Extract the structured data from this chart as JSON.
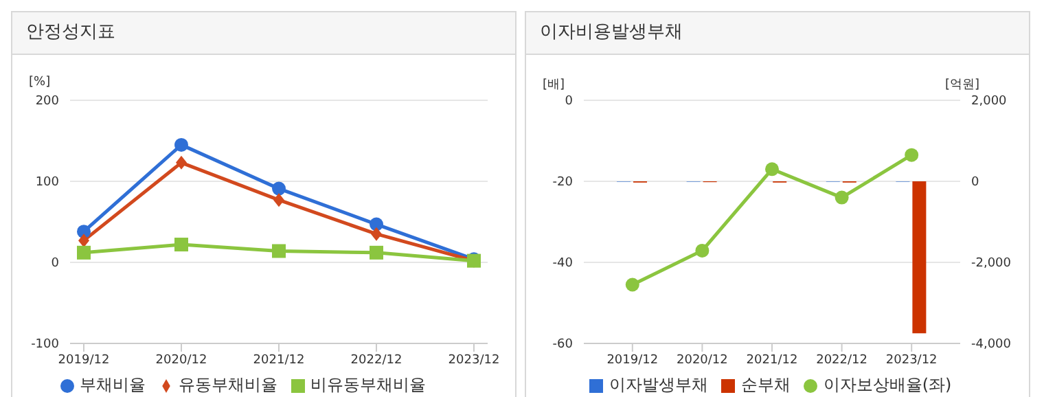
{
  "chart_data": [
    {
      "type": "line",
      "title": "안정성지표",
      "ylabel": "[%]",
      "categories": [
        "2019/12",
        "2020/12",
        "2021/12",
        "2022/12",
        "2023/12"
      ],
      "ylim": [
        -100,
        200
      ],
      "yticks": [
        -100,
        0,
        100,
        200
      ],
      "grid": "y",
      "legend": "bottom",
      "series": [
        {
          "name": "부채비율",
          "color": "#2f6fd6",
          "marker": "circle",
          "values": [
            38,
            145,
            91,
            47,
            4
          ]
        },
        {
          "name": "유동부채비율",
          "color": "#d2491e",
          "marker": "diamond",
          "values": [
            27,
            123,
            77,
            35,
            2
          ]
        },
        {
          "name": "비유동부채비율",
          "color": "#8bc53f",
          "marker": "square",
          "values": [
            12,
            22,
            14,
            12,
            2
          ]
        }
      ]
    },
    {
      "type": "bar",
      "title": "이자비용발생부채",
      "ylabel": "[배]",
      "y2label": "[억원]",
      "categories": [
        "2019/12",
        "2020/12",
        "2021/12",
        "2022/12",
        "2023/12"
      ],
      "ylim": [
        -60,
        0
      ],
      "yticks": [
        -60,
        -40,
        -20,
        0
      ],
      "y2lim": [
        -4000,
        2000
      ],
      "y2ticks": [
        {
          "value": -4000,
          "label": "-4,000"
        },
        {
          "value": -2000,
          "label": "-2,000"
        },
        0,
        {
          "value": 2000,
          "label": "2,000"
        }
      ],
      "grid": "y",
      "legend": "bottom",
      "series": [
        {
          "name": "이자발생부채",
          "axis": "y2",
          "color": "#2f6fd6",
          "values": [
            -10,
            -10,
            null,
            -10,
            -10
          ]
        },
        {
          "name": "순부채",
          "axis": "y2",
          "color": "#cc3300",
          "values": [
            -30,
            -20,
            -30,
            -30,
            -3750
          ]
        },
        {
          "name": "이자보상배율(좌)",
          "type": "line",
          "axis": "y",
          "color": "#8bc53f",
          "marker": "circle",
          "values": [
            -45.5,
            -37.1,
            -17,
            -24,
            -13.5
          ]
        }
      ]
    }
  ]
}
